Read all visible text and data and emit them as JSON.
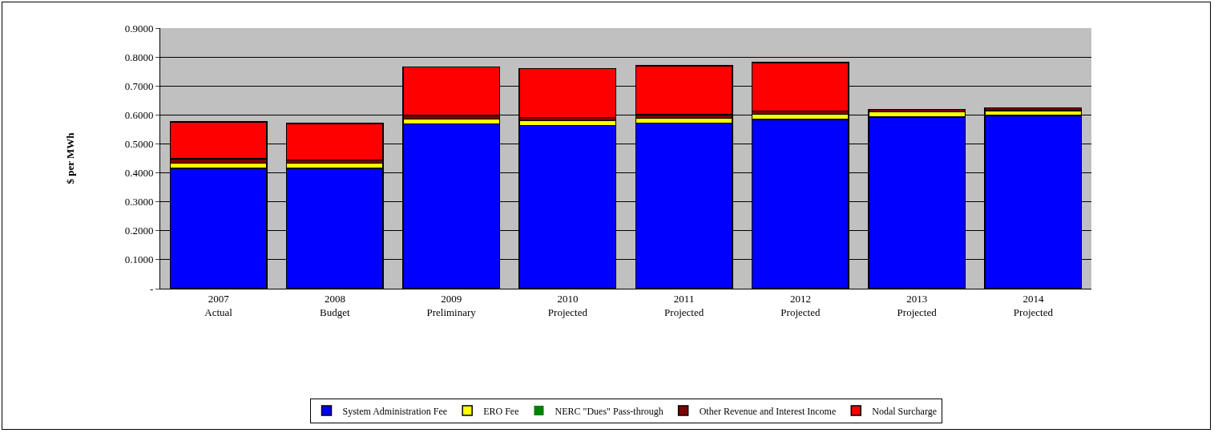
{
  "chart_data": {
    "type": "bar",
    "stacked": true,
    "ylabel": "$ per MWh",
    "categories": [
      "2007\nActual",
      "2008\nBudget",
      "2009\nPreliminary",
      "2010\nProjected",
      "2011\nProjected",
      "2012\nProjected",
      "2013\nProjected",
      "2014\nProjected"
    ],
    "series": [
      {
        "name": "System Administration Fee",
        "color": "#0000ff",
        "values": [
          0.416,
          0.416,
          0.569,
          0.564,
          0.572,
          0.585,
          0.593,
          0.598
        ]
      },
      {
        "name": "ERO Fee",
        "color": "#ffff00",
        "values": [
          0.017,
          0.017,
          0.017,
          0.016,
          0.017,
          0.017,
          0.017,
          0.017
        ]
      },
      {
        "name": "NERC \"Dues\" Pass-through",
        "color": "#008000",
        "values": [
          0,
          0,
          0,
          0,
          0,
          0,
          0,
          0
        ]
      },
      {
        "name": "Other Revenue and Interest Income",
        "color": "#800000",
        "values": [
          0.016,
          0.012,
          0.012,
          0.011,
          0.012,
          0.011,
          0.009,
          0.01
        ]
      },
      {
        "name": "Nodal Surcharge",
        "color": "#ff0000",
        "values": [
          0.127,
          0.126,
          0.168,
          0.169,
          0.169,
          0.168,
          0,
          0
        ]
      }
    ],
    "ylim": [
      0,
      0.9
    ],
    "yticks": [
      {
        "value": 0,
        "label": "-"
      },
      {
        "value": 0.1,
        "label": "0.1000"
      },
      {
        "value": 0.2,
        "label": "0.2000"
      },
      {
        "value": 0.3,
        "label": "0.3000"
      },
      {
        "value": 0.4,
        "label": "0.4000"
      },
      {
        "value": 0.5,
        "label": "0.5000"
      },
      {
        "value": 0.6,
        "label": "0.6000"
      },
      {
        "value": 0.7,
        "label": "0.7000"
      },
      {
        "value": 0.8,
        "label": "0.8000"
      },
      {
        "value": 0.9,
        "label": "0.9000"
      }
    ],
    "grid": "y",
    "legend": "bottom"
  }
}
